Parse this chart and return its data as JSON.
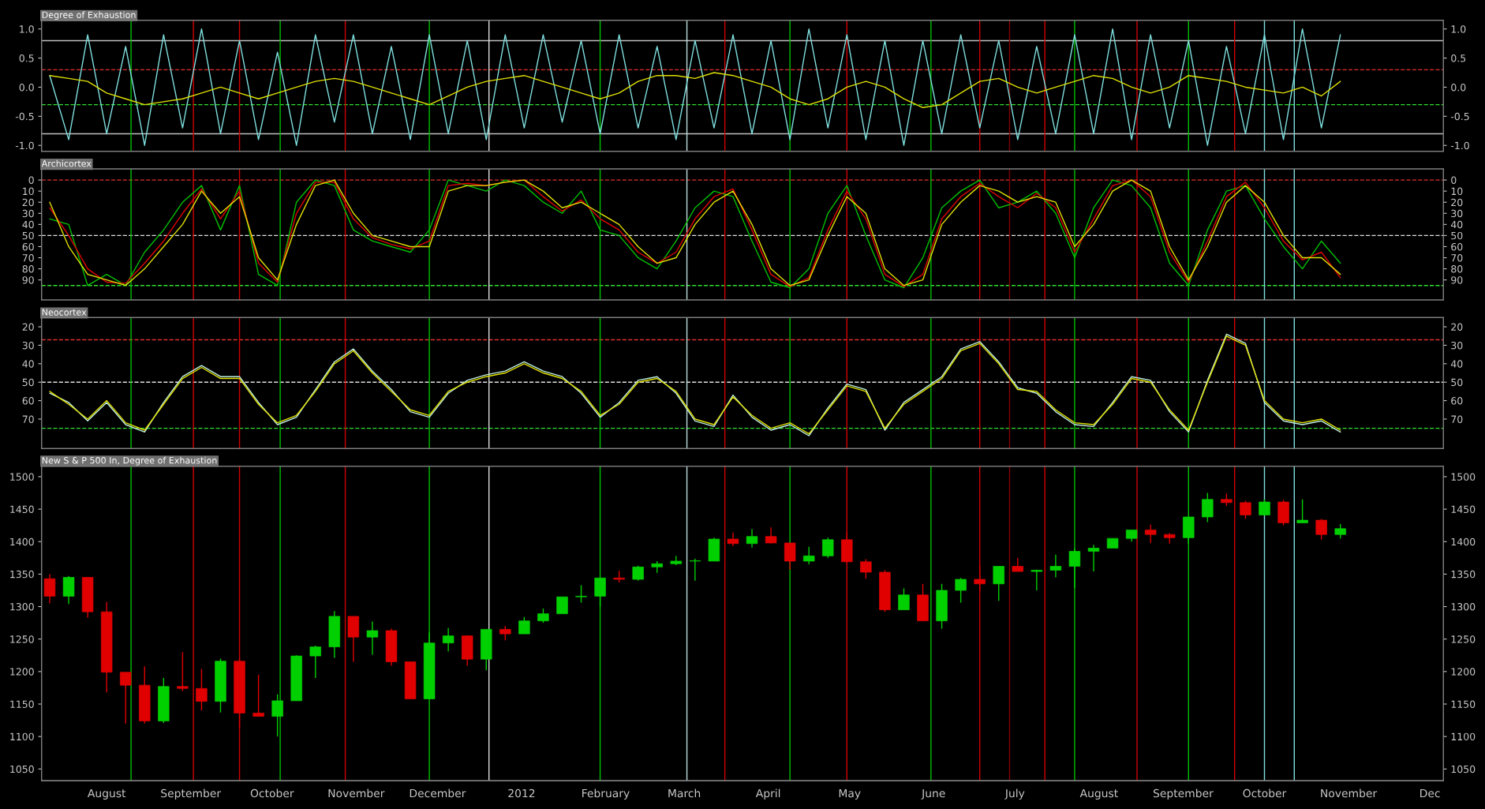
{
  "chart_data": [
    {
      "type": "line",
      "title": "Degree of Exhaustion",
      "tick_labels": "y",
      "x": [
        "2011-07-11",
        "2011-07-18",
        "2011-07-25",
        "2011-08-01",
        "2011-08-08",
        "2011-08-15",
        "2011-08-22",
        "2011-08-29",
        "2011-09-05",
        "2011-09-12",
        "2011-09-19",
        "2011-09-26",
        "2011-10-03",
        "2011-10-10",
        "2011-10-17",
        "2011-10-24",
        "2011-10-31",
        "2011-11-07",
        "2011-11-14",
        "2011-11-21",
        "2011-11-28",
        "2011-12-05",
        "2011-12-12",
        "2011-12-19",
        "2011-12-26",
        "2012-01-02",
        "2012-01-09",
        "2012-01-16",
        "2012-01-23",
        "2012-01-30",
        "2012-02-06",
        "2012-02-13",
        "2012-02-20",
        "2012-02-27",
        "2012-03-05",
        "2012-03-12",
        "2012-03-19",
        "2012-03-26",
        "2012-04-02",
        "2012-04-09",
        "2012-04-16",
        "2012-04-23",
        "2012-04-30",
        "2012-05-07",
        "2012-05-14",
        "2012-05-21",
        "2012-05-28",
        "2012-06-04",
        "2012-06-11",
        "2012-06-18",
        "2012-06-25",
        "2012-07-02",
        "2012-07-09",
        "2012-07-16",
        "2012-07-23",
        "2012-07-30",
        "2012-08-06",
        "2012-08-13",
        "2012-08-20",
        "2012-08-27",
        "2012-09-03",
        "2012-09-10",
        "2012-09-17",
        "2012-09-24",
        "2012-10-01",
        "2012-10-08",
        "2012-10-15",
        "2012-10-22",
        "2012-10-29"
      ],
      "series": [
        {
          "color": "#80e0e0",
          "values": [
            0.2,
            -0.9,
            0.9,
            -0.8,
            0.7,
            -1.0,
            0.9,
            -0.7,
            1.0,
            -0.8,
            0.8,
            -0.9,
            0.6,
            -1.0,
            0.9,
            -0.6,
            0.9,
            -0.8,
            0.7,
            -0.9,
            0.9,
            -0.8,
            0.8,
            -0.9,
            0.9,
            -0.7,
            0.9,
            -0.6,
            0.8,
            -0.8,
            0.9,
            -0.7,
            0.7,
            -0.9,
            0.8,
            -0.7,
            0.9,
            -0.8,
            0.8,
            -0.9,
            1.0,
            -0.7,
            0.9,
            -0.9,
            0.8,
            -1.0,
            0.8,
            -0.8,
            0.9,
            -0.7,
            0.8,
            -0.9,
            0.7,
            -0.8,
            0.9,
            -0.8,
            1.0,
            -0.9,
            0.9,
            -0.7,
            0.8,
            -1.0,
            0.7,
            -0.8,
            0.9,
            -0.9,
            1.0,
            -0.7,
            0.9
          ]
        },
        {
          "color": "#e0e000",
          "values": [
            0.2,
            0.15,
            0.1,
            -0.1,
            -0.2,
            -0.3,
            -0.25,
            -0.2,
            -0.1,
            0.0,
            -0.1,
            -0.2,
            -0.1,
            0.0,
            0.1,
            0.15,
            0.1,
            0.0,
            -0.1,
            -0.2,
            -0.3,
            -0.15,
            0.0,
            0.1,
            0.15,
            0.2,
            0.1,
            0.0,
            -0.1,
            -0.2,
            -0.1,
            0.1,
            0.2,
            0.2,
            0.15,
            0.25,
            0.2,
            0.1,
            0.0,
            -0.2,
            -0.3,
            -0.2,
            0.0,
            0.1,
            0.0,
            -0.2,
            -0.35,
            -0.3,
            -0.1,
            0.1,
            0.15,
            0.0,
            -0.1,
            0.0,
            0.1,
            0.2,
            0.15,
            0.0,
            -0.1,
            0.0,
            0.2,
            0.15,
            0.1,
            0.0,
            -0.05,
            -0.1,
            0.0,
            -0.15,
            0.1
          ]
        }
      ],
      "xlim": [
        "2011-07-08",
        "2012-12-06"
      ],
      "ylim": [
        -1.1,
        1.15
      ],
      "yticks": [
        {
          "value": -1,
          "label": "-1.0"
        },
        {
          "value": -0.5,
          "label": "-0.5"
        },
        {
          "value": 0,
          "label": "0.0"
        },
        {
          "value": 0.5,
          "label": "0.5"
        },
        {
          "value": 1,
          "label": "1.0"
        }
      ],
      "y2lim": [
        -1.1,
        1.15
      ],
      "y2ticks": [
        {
          "value": -1,
          "label": "-1.0"
        },
        {
          "value": -0.5,
          "label": "-0.5"
        },
        {
          "value": 0,
          "label": "0.0"
        },
        {
          "value": 0.5,
          "label": "0.5"
        },
        {
          "value": 1,
          "label": "1.0"
        }
      ],
      "ref_lines": [
        {
          "axis": "y",
          "value": 0.8,
          "color": "#c0c0c0",
          "line_style": "solid"
        },
        {
          "axis": "y",
          "value": 0.3,
          "color": "#e03030",
          "line_style": "dashed"
        },
        {
          "axis": "y",
          "value": -0.3,
          "color": "#30e030",
          "line_style": "dashed"
        },
        {
          "axis": "y",
          "value": -0.8,
          "color": "#c0c0c0",
          "line_style": "solid"
        },
        {
          "axis": "x",
          "value": "2011-08-10",
          "color": "#00c000"
        },
        {
          "axis": "x",
          "value": "2011-09-02",
          "color": "#d00000"
        },
        {
          "axis": "x",
          "value": "2011-09-19",
          "color": "#d00000"
        },
        {
          "axis": "x",
          "value": "2011-10-04",
          "color": "#00c000"
        },
        {
          "axis": "x",
          "value": "2011-10-28",
          "color": "#d00000"
        },
        {
          "axis": "x",
          "value": "2011-11-28",
          "color": "#00c000"
        },
        {
          "axis": "x",
          "value": "2011-12-20",
          "color": "#e0e0e0"
        },
        {
          "axis": "x",
          "value": "2012-01-30",
          "color": "#00c000"
        },
        {
          "axis": "x",
          "value": "2012-03-02",
          "color": "#c0e0e0"
        },
        {
          "axis": "x",
          "value": "2012-03-16",
          "color": "#d00000"
        },
        {
          "axis": "x",
          "value": "2012-04-09",
          "color": "#00c000"
        },
        {
          "axis": "x",
          "value": "2012-04-30",
          "color": "#d00000"
        },
        {
          "axis": "x",
          "value": "2012-05-31",
          "color": "#00c000"
        },
        {
          "axis": "x",
          "value": "2012-06-18",
          "color": "#d00000"
        },
        {
          "axis": "x",
          "value": "2012-06-29",
          "color": "#800000"
        },
        {
          "axis": "x",
          "value": "2012-07-12",
          "color": "#d00000"
        },
        {
          "axis": "x",
          "value": "2012-07-23",
          "color": "#00c000"
        },
        {
          "axis": "x",
          "value": "2012-08-15",
          "color": "#d00000"
        },
        {
          "axis": "x",
          "value": "2012-09-03",
          "color": "#00c000"
        },
        {
          "axis": "x",
          "value": "2012-09-20",
          "color": "#d00000"
        },
        {
          "axis": "x",
          "value": "2012-10-01",
          "color": "#80e0e0"
        },
        {
          "axis": "x",
          "value": "2012-10-12",
          "color": "#80e0e0"
        }
      ]
    },
    {
      "type": "line",
      "title": "Archicortex",
      "tick_labels": "y",
      "x": [
        "2011-07-11",
        "2011-07-18",
        "2011-07-25",
        "2011-08-01",
        "2011-08-08",
        "2011-08-15",
        "2011-08-22",
        "2011-08-29",
        "2011-09-05",
        "2011-09-12",
        "2011-09-19",
        "2011-09-26",
        "2011-10-03",
        "2011-10-10",
        "2011-10-17",
        "2011-10-24",
        "2011-10-31",
        "2011-11-07",
        "2011-11-14",
        "2011-11-21",
        "2011-11-28",
        "2011-12-05",
        "2011-12-12",
        "2011-12-19",
        "2011-12-26",
        "2012-01-02",
        "2012-01-09",
        "2012-01-16",
        "2012-01-23",
        "2012-01-30",
        "2012-02-06",
        "2012-02-13",
        "2012-02-20",
        "2012-02-27",
        "2012-03-05",
        "2012-03-12",
        "2012-03-19",
        "2012-03-26",
        "2012-04-02",
        "2012-04-09",
        "2012-04-16",
        "2012-04-23",
        "2012-04-30",
        "2012-05-07",
        "2012-05-14",
        "2012-05-21",
        "2012-05-28",
        "2012-06-04",
        "2012-06-11",
        "2012-06-18",
        "2012-06-25",
        "2012-07-02",
        "2012-07-09",
        "2012-07-16",
        "2012-07-23",
        "2012-07-30",
        "2012-08-06",
        "2012-08-13",
        "2012-08-20",
        "2012-08-27",
        "2012-09-03",
        "2012-09-10",
        "2012-09-17",
        "2012-09-24",
        "2012-10-01",
        "2012-10-08",
        "2012-10-15",
        "2012-10-22",
        "2012-10-29"
      ],
      "series": [
        {
          "color": "#00c000",
          "values": [
            35,
            40,
            95,
            85,
            95,
            65,
            45,
            20,
            5,
            45,
            5,
            85,
            95,
            20,
            0,
            5,
            45,
            55,
            60,
            65,
            45,
            0,
            5,
            10,
            0,
            5,
            20,
            30,
            10,
            45,
            50,
            70,
            80,
            55,
            25,
            10,
            15,
            55,
            92,
            97,
            80,
            30,
            5,
            50,
            90,
            97,
            70,
            25,
            10,
            0,
            25,
            20,
            10,
            30,
            70,
            25,
            0,
            5,
            25,
            75,
            95,
            45,
            10,
            5,
            35,
            60,
            80,
            55,
            75
          ]
        },
        {
          "color": "#e00000",
          "values": [
            25,
            50,
            80,
            92,
            93,
            75,
            55,
            30,
            8,
            35,
            10,
            75,
            92,
            30,
            2,
            2,
            35,
            52,
            58,
            62,
            55,
            5,
            3,
            5,
            2,
            0,
            15,
            28,
            18,
            35,
            45,
            65,
            75,
            65,
            35,
            15,
            8,
            45,
            85,
            96,
            88,
            45,
            10,
            35,
            85,
            96,
            85,
            35,
            15,
            3,
            15,
            25,
            12,
            25,
            65,
            35,
            5,
            0,
            15,
            65,
            92,
            55,
            15,
            2,
            25,
            55,
            72,
            65,
            88
          ]
        },
        {
          "color": "#e0e000",
          "values": [
            20,
            60,
            85,
            90,
            95,
            80,
            60,
            40,
            10,
            30,
            15,
            70,
            90,
            40,
            5,
            0,
            30,
            50,
            55,
            60,
            60,
            10,
            5,
            5,
            2,
            0,
            10,
            25,
            20,
            30,
            40,
            60,
            75,
            70,
            40,
            20,
            10,
            40,
            80,
            95,
            90,
            50,
            15,
            30,
            80,
            95,
            90,
            40,
            20,
            5,
            10,
            20,
            15,
            20,
            60,
            40,
            10,
            0,
            10,
            60,
            90,
            60,
            20,
            5,
            20,
            50,
            70,
            70,
            85
          ]
        }
      ],
      "xlim": [
        "2011-07-08",
        "2012-12-06"
      ],
      "ylim": [
        108,
        -10
      ],
      "yticks": [
        0,
        10,
        20,
        30,
        40,
        50,
        60,
        70,
        80,
        90
      ],
      "y2lim": [
        108,
        -10
      ],
      "y2ticks": [
        0,
        10,
        20,
        30,
        40,
        50,
        60,
        70,
        80,
        90
      ],
      "ref_lines": [
        {
          "axis": "y",
          "value": 0,
          "color": "#e03030",
          "line_style": "dashed"
        },
        {
          "axis": "y",
          "value": 50,
          "color": "#e0e0e0",
          "line_style": "dashed"
        },
        {
          "axis": "y",
          "value": 95,
          "color": "#30e030",
          "line_style": "dashed"
        },
        {
          "axis": "x",
          "value": "2011-08-10",
          "color": "#00c000"
        },
        {
          "axis": "x",
          "value": "2011-09-02",
          "color": "#d00000"
        },
        {
          "axis": "x",
          "value": "2011-09-19",
          "color": "#d00000"
        },
        {
          "axis": "x",
          "value": "2011-10-04",
          "color": "#00c000"
        },
        {
          "axis": "x",
          "value": "2011-10-28",
          "color": "#d00000"
        },
        {
          "axis": "x",
          "value": "2011-11-28",
          "color": "#00c000"
        },
        {
          "axis": "x",
          "value": "2011-12-20",
          "color": "#e0e0e0"
        },
        {
          "axis": "x",
          "value": "2012-01-30",
          "color": "#00c000"
        },
        {
          "axis": "x",
          "value": "2012-03-02",
          "color": "#c0e0e0"
        },
        {
          "axis": "x",
          "value": "2012-03-16",
          "color": "#d00000"
        },
        {
          "axis": "x",
          "value": "2012-04-09",
          "color": "#00c000"
        },
        {
          "axis": "x",
          "value": "2012-04-30",
          "color": "#d00000"
        },
        {
          "axis": "x",
          "value": "2012-05-31",
          "color": "#00c000"
        },
        {
          "axis": "x",
          "value": "2012-06-18",
          "color": "#d00000"
        },
        {
          "axis": "x",
          "value": "2012-06-29",
          "color": "#800000"
        },
        {
          "axis": "x",
          "value": "2012-07-12",
          "color": "#d00000"
        },
        {
          "axis": "x",
          "value": "2012-07-23",
          "color": "#00c000"
        },
        {
          "axis": "x",
          "value": "2012-08-15",
          "color": "#d00000"
        },
        {
          "axis": "x",
          "value": "2012-09-03",
          "color": "#00c000"
        },
        {
          "axis": "x",
          "value": "2012-09-20",
          "color": "#d00000"
        },
        {
          "axis": "x",
          "value": "2012-10-01",
          "color": "#80e0e0"
        },
        {
          "axis": "x",
          "value": "2012-10-12",
          "color": "#80e0e0"
        }
      ]
    },
    {
      "type": "line",
      "title": "Neocortex",
      "tick_labels": "y",
      "x": [
        "2011-07-11",
        "2011-07-18",
        "2011-07-25",
        "2011-08-01",
        "2011-08-08",
        "2011-08-15",
        "2011-08-22",
        "2011-08-29",
        "2011-09-05",
        "2011-09-12",
        "2011-09-19",
        "2011-09-26",
        "2011-10-03",
        "2011-10-10",
        "2011-10-17",
        "2011-10-24",
        "2011-10-31",
        "2011-11-07",
        "2011-11-14",
        "2011-11-21",
        "2011-11-28",
        "2011-12-05",
        "2011-12-12",
        "2011-12-19",
        "2011-12-26",
        "2012-01-02",
        "2012-01-09",
        "2012-01-16",
        "2012-01-23",
        "2012-01-30",
        "2012-02-06",
        "2012-02-13",
        "2012-02-20",
        "2012-02-27",
        "2012-03-05",
        "2012-03-12",
        "2012-03-19",
        "2012-03-26",
        "2012-04-02",
        "2012-04-09",
        "2012-04-16",
        "2012-04-23",
        "2012-04-30",
        "2012-05-07",
        "2012-05-14",
        "2012-05-21",
        "2012-05-28",
        "2012-06-04",
        "2012-06-11",
        "2012-06-18",
        "2012-06-25",
        "2012-07-02",
        "2012-07-09",
        "2012-07-16",
        "2012-07-23",
        "2012-07-30",
        "2012-08-06",
        "2012-08-13",
        "2012-08-20",
        "2012-08-27",
        "2012-09-03",
        "2012-09-10",
        "2012-09-17",
        "2012-09-24",
        "2012-10-01",
        "2012-10-08",
        "2012-10-15",
        "2012-10-22",
        "2012-10-29"
      ],
      "series": [
        {
          "color": "#c0f0e0",
          "values": [
            56,
            61,
            71,
            61,
            73,
            77,
            61,
            47,
            41,
            47,
            47,
            61,
            73,
            69,
            54,
            39,
            32,
            44,
            54,
            66,
            69,
            56,
            49,
            46,
            44,
            39,
            44,
            47,
            56,
            69,
            61,
            49,
            47,
            56,
            71,
            74,
            57,
            69,
            76,
            73,
            79,
            64,
            51,
            54,
            76,
            61,
            54,
            47,
            32,
            28,
            39,
            53,
            56,
            66,
            73,
            74,
            61,
            47,
            49,
            66,
            77,
            49,
            24,
            29,
            61,
            71,
            73,
            71,
            77
          ]
        },
        {
          "color": "#e0e000",
          "values": [
            55,
            62,
            70,
            60,
            72,
            76,
            62,
            48,
            42,
            48,
            48,
            62,
            72,
            68,
            55,
            40,
            33,
            45,
            55,
            65,
            68,
            55,
            50,
            47,
            45,
            40,
            45,
            48,
            55,
            68,
            62,
            50,
            48,
            55,
            70,
            73,
            58,
            68,
            75,
            72,
            78,
            65,
            52,
            55,
            75,
            62,
            55,
            48,
            33,
            29,
            40,
            54,
            55,
            65,
            72,
            73,
            62,
            48,
            50,
            65,
            76,
            50,
            25,
            30,
            60,
            70,
            72,
            70,
            76
          ]
        }
      ],
      "xlim": [
        "2011-07-08",
        "2012-12-06"
      ],
      "ylim": [
        86,
        15
      ],
      "yticks": [
        20,
        30,
        40,
        50,
        60,
        70
      ],
      "y2lim": [
        86,
        15
      ],
      "y2ticks": [
        20,
        30,
        40,
        50,
        60,
        70
      ],
      "ref_lines": [
        {
          "axis": "y",
          "value": 27,
          "color": "#e03030",
          "line_style": "dashed"
        },
        {
          "axis": "y",
          "value": 50,
          "color": "#e0e0e0",
          "line_style": "dashed"
        },
        {
          "axis": "y",
          "value": 75,
          "color": "#30e030",
          "line_style": "dashed"
        },
        {
          "axis": "x",
          "value": "2011-08-10",
          "color": "#00c000"
        },
        {
          "axis": "x",
          "value": "2011-09-02",
          "color": "#d00000"
        },
        {
          "axis": "x",
          "value": "2011-09-19",
          "color": "#d00000"
        },
        {
          "axis": "x",
          "value": "2011-10-04",
          "color": "#00c000"
        },
        {
          "axis": "x",
          "value": "2011-10-28",
          "color": "#d00000"
        },
        {
          "axis": "x",
          "value": "2011-11-28",
          "color": "#00c000"
        },
        {
          "axis": "x",
          "value": "2011-12-20",
          "color": "#e0e0e0"
        },
        {
          "axis": "x",
          "value": "2012-01-30",
          "color": "#00c000"
        },
        {
          "axis": "x",
          "value": "2012-03-02",
          "color": "#c0e0e0"
        },
        {
          "axis": "x",
          "value": "2012-03-16",
          "color": "#d00000"
        },
        {
          "axis": "x",
          "value": "2012-04-09",
          "color": "#00c000"
        },
        {
          "axis": "x",
          "value": "2012-04-30",
          "color": "#d00000"
        },
        {
          "axis": "x",
          "value": "2012-05-31",
          "color": "#00c000"
        },
        {
          "axis": "x",
          "value": "2012-06-18",
          "color": "#d00000"
        },
        {
          "axis": "x",
          "value": "2012-06-29",
          "color": "#800000"
        },
        {
          "axis": "x",
          "value": "2012-07-12",
          "color": "#d00000"
        },
        {
          "axis": "x",
          "value": "2012-07-23",
          "color": "#00c000"
        },
        {
          "axis": "x",
          "value": "2012-08-15",
          "color": "#d00000"
        },
        {
          "axis": "x",
          "value": "2012-09-03",
          "color": "#00c000"
        },
        {
          "axis": "x",
          "value": "2012-09-20",
          "color": "#d00000"
        },
        {
          "axis": "x",
          "value": "2012-10-01",
          "color": "#80e0e0"
        },
        {
          "axis": "x",
          "value": "2012-10-12",
          "color": "#80e0e0"
        }
      ]
    },
    {
      "type": "candlestick",
      "title": "New S & P 500 In, Degree of Exhaustion",
      "x": [
        "2011-07-11",
        "2011-07-18",
        "2011-07-25",
        "2011-08-01",
        "2011-08-08",
        "2011-08-15",
        "2011-08-22",
        "2011-08-29",
        "2011-09-05",
        "2011-09-12",
        "2011-09-19",
        "2011-09-26",
        "2011-10-03",
        "2011-10-10",
        "2011-10-17",
        "2011-10-24",
        "2011-10-31",
        "2011-11-07",
        "2011-11-14",
        "2011-11-21",
        "2011-11-28",
        "2011-12-05",
        "2011-12-12",
        "2011-12-19",
        "2011-12-26",
        "2012-01-02",
        "2012-01-09",
        "2012-01-16",
        "2012-01-23",
        "2012-01-30",
        "2012-02-06",
        "2012-02-13",
        "2012-02-20",
        "2012-02-27",
        "2012-03-05",
        "2012-03-12",
        "2012-03-19",
        "2012-03-26",
        "2012-04-02",
        "2012-04-09",
        "2012-04-16",
        "2012-04-23",
        "2012-04-30",
        "2012-05-07",
        "2012-05-14",
        "2012-05-21",
        "2012-05-28",
        "2012-06-04",
        "2012-06-11",
        "2012-06-18",
        "2012-06-25",
        "2012-07-02",
        "2012-07-09",
        "2012-07-16",
        "2012-07-23",
        "2012-07-30",
        "2012-08-06",
        "2012-08-13",
        "2012-08-20",
        "2012-08-27",
        "2012-09-03",
        "2012-09-10",
        "2012-09-17",
        "2012-09-24",
        "2012-10-01",
        "2012-10-08",
        "2012-10-15",
        "2012-10-22",
        "2012-10-29"
      ],
      "ohlc": [
        [
          1343,
          1350,
          1305,
          1316
        ],
        [
          1316,
          1347,
          1304,
          1345
        ],
        [
          1345,
          1345,
          1283,
          1292
        ],
        [
          1292,
          1307,
          1168,
          1199
        ],
        [
          1199,
          1199,
          1120,
          1179
        ],
        [
          1179,
          1208,
          1120,
          1124
        ],
        [
          1124,
          1190,
          1121,
          1177
        ],
        [
          1177,
          1230,
          1170,
          1174
        ],
        [
          1174,
          1204,
          1140,
          1154
        ],
        [
          1154,
          1220,
          1137,
          1216
        ],
        [
          1216,
          1220,
          1114,
          1136
        ],
        [
          1136,
          1195,
          1131,
          1131
        ],
        [
          1131,
          1165,
          1100,
          1155
        ],
        [
          1155,
          1225,
          1155,
          1224
        ],
        [
          1224,
          1240,
          1190,
          1238
        ],
        [
          1238,
          1293,
          1221,
          1285
        ],
        [
          1285,
          1285,
          1215,
          1253
        ],
        [
          1253,
          1277,
          1226,
          1263
        ],
        [
          1263,
          1266,
          1209,
          1215
        ],
        [
          1215,
          1215,
          1158,
          1158
        ],
        [
          1158,
          1260,
          1158,
          1244
        ],
        [
          1244,
          1267,
          1231,
          1255
        ],
        [
          1255,
          1256,
          1209,
          1219
        ],
        [
          1219,
          1265,
          1202,
          1265
        ],
        [
          1265,
          1270,
          1248,
          1258
        ],
        [
          1258,
          1284,
          1258,
          1278
        ],
        [
          1278,
          1297,
          1275,
          1289
        ],
        [
          1289,
          1315,
          1289,
          1315
        ],
        [
          1315,
          1333,
          1306,
          1316
        ],
        [
          1316,
          1345,
          1300,
          1344
        ],
        [
          1344,
          1355,
          1337,
          1342
        ],
        [
          1342,
          1363,
          1340,
          1361
        ],
        [
          1361,
          1370,
          1352,
          1366
        ],
        [
          1366,
          1378,
          1364,
          1370
        ],
        [
          1370,
          1374,
          1340,
          1370
        ],
        [
          1370,
          1406,
          1370,
          1404
        ],
        [
          1404,
          1414,
          1393,
          1397
        ],
        [
          1397,
          1419,
          1391,
          1408
        ],
        [
          1408,
          1422,
          1397,
          1398
        ],
        [
          1398,
          1398,
          1357,
          1370
        ],
        [
          1370,
          1392,
          1365,
          1378
        ],
        [
          1378,
          1406,
          1375,
          1403
        ],
        [
          1403,
          1415,
          1367,
          1369
        ],
        [
          1369,
          1373,
          1343,
          1353
        ],
        [
          1353,
          1356,
          1292,
          1295
        ],
        [
          1295,
          1328,
          1295,
          1318
        ],
        [
          1318,
          1335,
          1278,
          1278
        ],
        [
          1278,
          1335,
          1266,
          1325
        ],
        [
          1325,
          1344,
          1306,
          1342
        ],
        [
          1342,
          1363,
          1324,
          1335
        ],
        [
          1335,
          1362,
          1309,
          1362
        ],
        [
          1362,
          1375,
          1354,
          1354
        ],
        [
          1354,
          1357,
          1325,
          1356
        ],
        [
          1356,
          1380,
          1345,
          1362
        ],
        [
          1362,
          1389,
          1329,
          1385
        ],
        [
          1385,
          1395,
          1354,
          1390
        ],
        [
          1390,
          1405,
          1390,
          1405
        ],
        [
          1405,
          1418,
          1400,
          1418
        ],
        [
          1418,
          1426,
          1398,
          1411
        ],
        [
          1411,
          1413,
          1397,
          1406
        ],
        [
          1406,
          1438,
          1397,
          1438
        ],
        [
          1438,
          1475,
          1430,
          1465
        ],
        [
          1465,
          1474,
          1455,
          1460
        ],
        [
          1460,
          1463,
          1435,
          1441
        ],
        [
          1441,
          1465,
          1441,
          1461
        ],
        [
          1461,
          1464,
          1425,
          1429
        ],
        [
          1429,
          1465,
          1429,
          1433
        ],
        [
          1433,
          1435,
          1403,
          1411
        ],
        [
          1411,
          1427,
          1405,
          1420
        ]
      ],
      "xlim": [
        "2011-07-08",
        "2012-12-06"
      ],
      "xticks": [
        {
          "value": "2011-08-01",
          "label": "August"
        },
        {
          "value": "2011-09-01",
          "label": "September"
        },
        {
          "value": "2011-10-01",
          "label": "October"
        },
        {
          "value": "2011-11-01",
          "label": "November"
        },
        {
          "value": "2011-12-01",
          "label": "December"
        },
        {
          "value": "2012-01-01",
          "label": "2012"
        },
        {
          "value": "2012-02-01",
          "label": "February"
        },
        {
          "value": "2012-03-01",
          "label": "March"
        },
        {
          "value": "2012-04-01",
          "label": "April"
        },
        {
          "value": "2012-05-01",
          "label": "May"
        },
        {
          "value": "2012-06-01",
          "label": "June"
        },
        {
          "value": "2012-07-01",
          "label": "July"
        },
        {
          "value": "2012-08-01",
          "label": "August"
        },
        {
          "value": "2012-09-01",
          "label": "September"
        },
        {
          "value": "2012-10-01",
          "label": "October"
        },
        {
          "value": "2012-11-01",
          "label": "November"
        },
        {
          "value": "2012-12-01",
          "label": "Dec"
        }
      ],
      "ylim": [
        1032,
        1516
      ],
      "yticks": [
        1050,
        1100,
        1150,
        1200,
        1250,
        1300,
        1350,
        1400,
        1450,
        1500
      ],
      "y2lim": [
        1032,
        1516
      ],
      "y2ticks": [
        1050,
        1100,
        1150,
        1200,
        1250,
        1300,
        1350,
        1400,
        1450,
        1500
      ],
      "ref_lines": [
        {
          "axis": "x",
          "value": "2011-08-10",
          "color": "#00c000"
        },
        {
          "axis": "x",
          "value": "2011-09-02",
          "color": "#d00000"
        },
        {
          "axis": "x",
          "value": "2011-09-19",
          "color": "#d00000"
        },
        {
          "axis": "x",
          "value": "2011-10-04",
          "color": "#00c000"
        },
        {
          "axis": "x",
          "value": "2011-10-28",
          "color": "#d00000"
        },
        {
          "axis": "x",
          "value": "2011-11-28",
          "color": "#00c000"
        },
        {
          "axis": "x",
          "value": "2011-12-20",
          "color": "#e0e0e0"
        },
        {
          "axis": "x",
          "value": "2012-01-30",
          "color": "#00c000"
        },
        {
          "axis": "x",
          "value": "2012-03-02",
          "color": "#c0e0e0"
        },
        {
          "axis": "x",
          "value": "2012-03-16",
          "color": "#d00000"
        },
        {
          "axis": "x",
          "value": "2012-04-09",
          "color": "#00c000"
        },
        {
          "axis": "x",
          "value": "2012-04-30",
          "color": "#d00000"
        },
        {
          "axis": "x",
          "value": "2012-05-31",
          "color": "#00c000"
        },
        {
          "axis": "x",
          "value": "2012-06-18",
          "color": "#d00000"
        },
        {
          "axis": "x",
          "value": "2012-06-29",
          "color": "#800000"
        },
        {
          "axis": "x",
          "value": "2012-07-12",
          "color": "#d00000"
        },
        {
          "axis": "x",
          "value": "2012-07-23",
          "color": "#00c000"
        },
        {
          "axis": "x",
          "value": "2012-08-15",
          "color": "#d00000"
        },
        {
          "axis": "x",
          "value": "2012-09-03",
          "color": "#00c000"
        },
        {
          "axis": "x",
          "value": "2012-09-20",
          "color": "#d00000"
        },
        {
          "axis": "x",
          "value": "2012-10-01",
          "color": "#80e0e0"
        },
        {
          "axis": "x",
          "value": "2012-10-12",
          "color": "#80e0e0"
        }
      ]
    }
  ]
}
